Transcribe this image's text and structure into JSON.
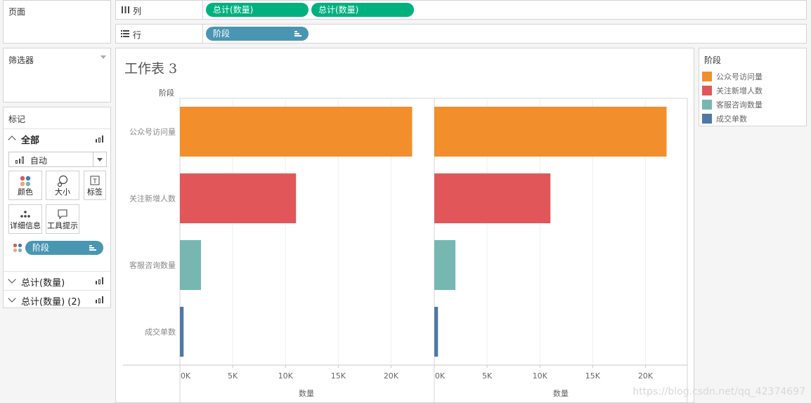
{
  "pages_panel": {
    "title": "页面"
  },
  "filters_panel": {
    "title": "筛选器"
  },
  "marks_panel": {
    "title": "标记",
    "all_label": "全部",
    "mark_type": "自动",
    "buttons": [
      {
        "label": "颜色",
        "icon": "color-dots-icon"
      },
      {
        "label": "大小",
        "icon": "size-icon"
      },
      {
        "label": "标签",
        "icon": "label-icon"
      },
      {
        "label": "详细信息",
        "icon": "detail-icon"
      },
      {
        "label": "工具提示",
        "icon": "tooltip-icon"
      }
    ],
    "color_pill": "阶段",
    "measure_rows": [
      "总计(数量)",
      "总计(数量) (2)"
    ]
  },
  "columns_shelf": {
    "label": "列",
    "pills": [
      "总计(数量)",
      "总计(数量)"
    ]
  },
  "rows_shelf": {
    "label": "行",
    "pills": [
      "阶段"
    ]
  },
  "sheet": {
    "title": "工作表 3",
    "row_header": "阶段"
  },
  "legend": {
    "title": "阶段",
    "items": [
      {
        "name": "公众号访问量",
        "color": "#f28e2b"
      },
      {
        "name": "关注新增人数",
        "color": "#e15759"
      },
      {
        "name": "客服咨询数量",
        "color": "#76b7b2"
      },
      {
        "name": "成交单数",
        "color": "#4e79a7"
      }
    ]
  },
  "chart_data": [
    {
      "type": "bar",
      "orientation": "horizontal",
      "categories": [
        "公众号访问量",
        "关注新增人数",
        "客服咨询数量",
        "成交单数"
      ],
      "values": [
        22000,
        11000,
        2000,
        350
      ],
      "colors": [
        "#f28e2b",
        "#e15759",
        "#76b7b2",
        "#4e79a7"
      ],
      "xlabel": "数量",
      "ylabel": "阶段",
      "xticks": [
        "0K",
        "5K",
        "10K",
        "15K",
        "20K"
      ],
      "xlim": [
        0,
        23500
      ],
      "grid": true
    },
    {
      "type": "bar",
      "orientation": "horizontal",
      "categories": [
        "公众号访问量",
        "关注新增人数",
        "客服咨询数量",
        "成交单数"
      ],
      "values": [
        22000,
        11000,
        2000,
        350
      ],
      "colors": [
        "#f28e2b",
        "#e15759",
        "#76b7b2",
        "#4e79a7"
      ],
      "xlabel": "数量",
      "ylabel": "阶段",
      "xticks": [
        "0K",
        "5K",
        "10K",
        "15K",
        "20K"
      ],
      "xlim": [
        0,
        23500
      ],
      "grid": true
    }
  ],
  "watermark": "https://blog.csdn.net/qq_42374697"
}
